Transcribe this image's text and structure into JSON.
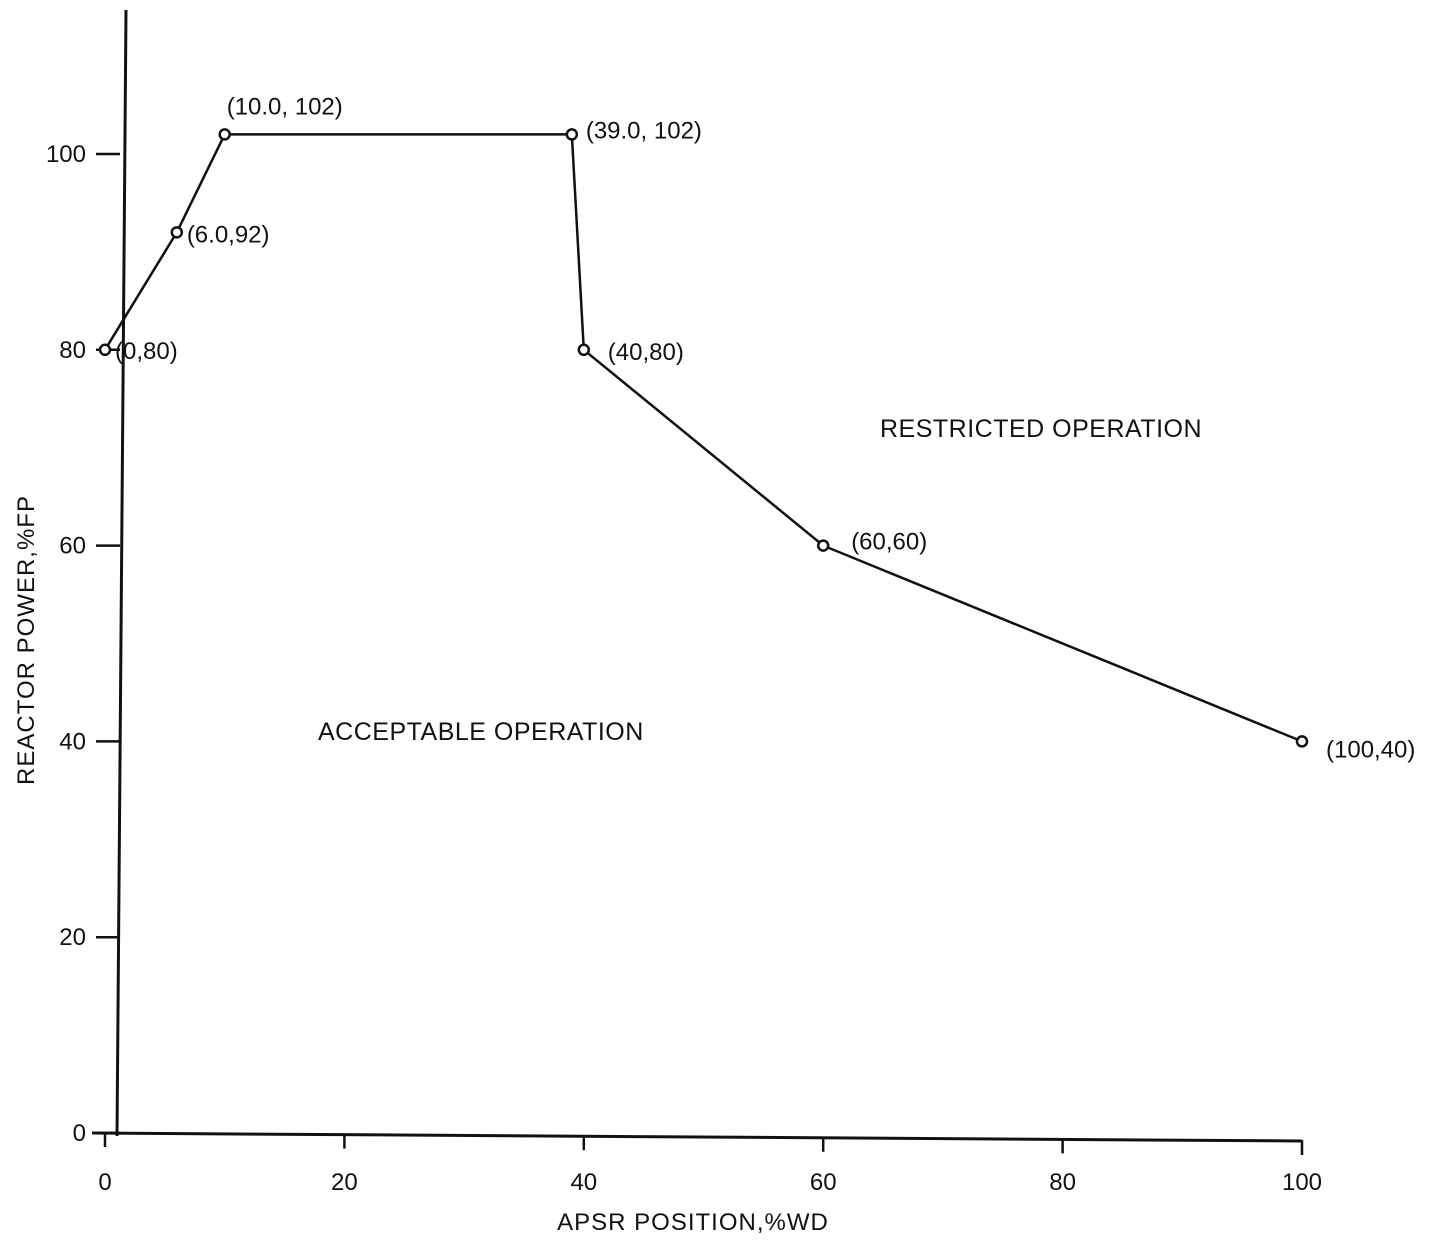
{
  "chart_data": {
    "type": "line",
    "xlabel": "APSR POSITION,%WD",
    "ylabel": "REACTOR POWER,%FP",
    "xlim": [
      0,
      100
    ],
    "ylim": [
      0,
      100
    ],
    "x_ticks": [
      "0",
      "20",
      "40",
      "60",
      "80",
      "100"
    ],
    "y_ticks": [
      "0",
      "20",
      "40",
      "60",
      "80",
      "100"
    ],
    "grid": false,
    "series": [
      {
        "points": [
          {
            "x": 0,
            "y": 80,
            "label": "(0,80)"
          },
          {
            "x": 6.0,
            "y": 92,
            "label": "(6.0,92)"
          },
          {
            "x": 10.0,
            "y": 102,
            "label": "(10.0, 102)"
          },
          {
            "x": 39.0,
            "y": 102,
            "label": "(39.0, 102)"
          },
          {
            "x": 40,
            "y": 80,
            "label": "(40,80)"
          },
          {
            "x": 60,
            "y": 60,
            "label": "(60,60)"
          },
          {
            "x": 100,
            "y": 40,
            "label": "(100,40)"
          }
        ]
      }
    ],
    "annotations": [
      "RESTRICTED OPERATION",
      "ACCEPTABLE OPERATION"
    ]
  }
}
